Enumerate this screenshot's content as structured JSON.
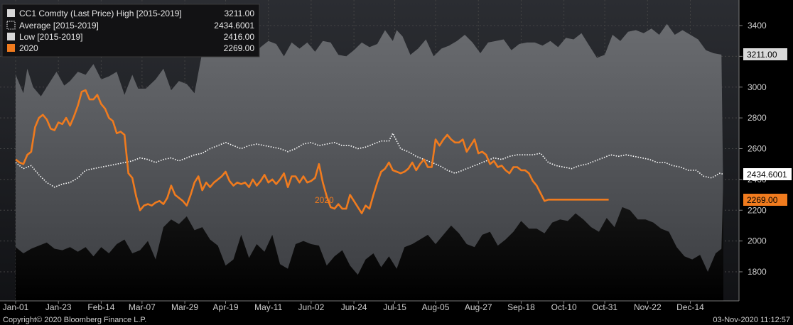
{
  "chart_data": {
    "type": "area",
    "title": "",
    "xlabel": "",
    "ylabel": "",
    "ylim": [
      1600,
      3550
    ],
    "y_ticks": [
      1800,
      2000,
      2200,
      2400,
      2600,
      2800,
      3000,
      3200,
      3400
    ],
    "x_tick_labels": [
      "Jan-01",
      "Jan-23",
      "Feb-14",
      "Mar-07",
      "Mar-29",
      "Apr-19",
      "May-11",
      "Jun-02",
      "Jun-24",
      "Jul-15",
      "Aug-05",
      "Aug-27",
      "Sep-18",
      "Oct-10",
      "Oct-31",
      "Nov-22",
      "Dec-14"
    ],
    "x_tick_days": [
      0,
      22,
      44,
      65,
      87,
      108,
      130,
      152,
      174,
      195,
      216,
      238,
      260,
      282,
      303,
      325,
      347
    ],
    "grid": true,
    "legend_placement": "top-left",
    "series": [
      {
        "name": "CC1 Comdty (Last Price) High [2015-2019]",
        "legend_value": "3211.00",
        "badge": "3211.00",
        "color": "#5a5c60",
        "x": [
          0,
          4,
          6,
          9,
          13,
          17,
          21,
          25,
          28,
          32,
          36,
          40,
          44,
          48,
          52,
          56,
          60,
          63,
          67,
          72,
          76,
          80,
          84,
          88,
          92,
          96,
          100,
          104,
          108,
          111,
          114,
          118,
          122,
          126,
          130,
          134,
          138,
          142,
          146,
          150,
          154,
          158,
          162,
          166,
          170,
          174,
          178,
          182,
          186,
          190,
          194,
          196,
          199,
          203,
          207,
          211,
          215,
          219,
          223,
          227,
          231,
          235,
          239,
          243,
          247,
          251,
          255,
          259,
          263,
          267,
          271,
          275,
          279,
          283,
          287,
          291,
          295,
          299,
          303,
          307,
          311,
          315,
          319,
          323,
          327,
          331,
          335,
          339,
          343,
          347,
          351,
          355,
          359,
          363,
          364
        ],
        "values": [
          3080,
          2960,
          3120,
          3000,
          2940,
          3020,
          3100,
          3010,
          3040,
          3100,
          3080,
          3150,
          3050,
          3070,
          3100,
          2950,
          3080,
          2990,
          2990,
          3050,
          3120,
          2980,
          3040,
          3020,
          2960,
          3230,
          3250,
          3300,
          3290,
          3340,
          3360,
          3300,
          3210,
          3260,
          3300,
          3280,
          3200,
          3290,
          3250,
          3290,
          3230,
          3300,
          3290,
          3210,
          3200,
          3240,
          3290,
          3260,
          3280,
          3370,
          3300,
          3370,
          3330,
          3210,
          3250,
          3310,
          3200,
          3250,
          3270,
          3300,
          3340,
          3290,
          3220,
          3290,
          3300,
          3310,
          3240,
          3280,
          3290,
          3290,
          3270,
          3300,
          3260,
          3320,
          3310,
          3350,
          3270,
          3190,
          3210,
          3340,
          3300,
          3360,
          3370,
          3350,
          3380,
          3340,
          3410,
          3340,
          3370,
          3340,
          3310,
          3240,
          3220,
          3211,
          2230
        ]
      },
      {
        "name": "Average [2015-2019]",
        "legend_value": "2434.6001",
        "badge": "2434.6001",
        "color": "#ffffff",
        "x": [
          0,
          4,
          8,
          12,
          16,
          20,
          24,
          28,
          32,
          36,
          40,
          44,
          48,
          52,
          56,
          60,
          64,
          68,
          72,
          76,
          80,
          84,
          88,
          92,
          96,
          100,
          104,
          108,
          112,
          116,
          120,
          124,
          128,
          132,
          136,
          140,
          144,
          148,
          152,
          156,
          160,
          164,
          168,
          172,
          176,
          180,
          184,
          188,
          192,
          194,
          198,
          202,
          206,
          210,
          214,
          218,
          222,
          226,
          230,
          234,
          238,
          242,
          246,
          250,
          254,
          258,
          262,
          266,
          270,
          274,
          278,
          282,
          286,
          290,
          294,
          298,
          302,
          306,
          310,
          314,
          318,
          322,
          326,
          330,
          334,
          338,
          342,
          346,
          350,
          354,
          358,
          362,
          364
        ],
        "values": [
          2510,
          2470,
          2490,
          2430,
          2380,
          2350,
          2370,
          2380,
          2410,
          2460,
          2470,
          2480,
          2490,
          2500,
          2510,
          2520,
          2540,
          2530,
          2510,
          2530,
          2540,
          2520,
          2540,
          2560,
          2570,
          2600,
          2620,
          2640,
          2620,
          2600,
          2620,
          2630,
          2620,
          2610,
          2600,
          2580,
          2600,
          2630,
          2640,
          2620,
          2630,
          2640,
          2620,
          2620,
          2600,
          2610,
          2630,
          2650,
          2650,
          2700,
          2600,
          2580,
          2550,
          2530,
          2510,
          2490,
          2460,
          2440,
          2460,
          2480,
          2500,
          2520,
          2540,
          2530,
          2550,
          2560,
          2560,
          2560,
          2570,
          2510,
          2490,
          2480,
          2470,
          2490,
          2500,
          2520,
          2540,
          2560,
          2550,
          2560,
          2550,
          2540,
          2530,
          2510,
          2510,
          2490,
          2480,
          2460,
          2460,
          2420,
          2410,
          2440,
          2434.6
        ]
      },
      {
        "name": "Low [2015-2019]",
        "legend_value": "2416.00",
        "color": "#000000",
        "x": [
          0,
          4,
          8,
          12,
          16,
          20,
          24,
          28,
          32,
          36,
          40,
          44,
          48,
          52,
          56,
          60,
          64,
          68,
          72,
          76,
          80,
          84,
          88,
          92,
          96,
          100,
          104,
          108,
          112,
          116,
          120,
          124,
          128,
          132,
          136,
          140,
          144,
          148,
          152,
          156,
          160,
          164,
          168,
          172,
          176,
          180,
          184,
          188,
          192,
          196,
          200,
          204,
          208,
          212,
          216,
          220,
          224,
          228,
          232,
          236,
          240,
          244,
          248,
          252,
          256,
          260,
          264,
          268,
          272,
          276,
          280,
          284,
          288,
          292,
          296,
          300,
          304,
          308,
          312,
          316,
          320,
          324,
          328,
          332,
          336,
          340,
          344,
          348,
          352,
          356,
          360,
          363,
          364
        ],
        "values": [
          1960,
          1920,
          1950,
          1970,
          1990,
          1950,
          1940,
          1960,
          1930,
          1960,
          1900,
          1960,
          1920,
          1980,
          2010,
          1920,
          1940,
          2000,
          1880,
          2090,
          2140,
          2110,
          2160,
          2070,
          2090,
          2010,
          1970,
          1840,
          1880,
          2040,
          1890,
          1980,
          1930,
          2040,
          1850,
          1820,
          1980,
          2000,
          1980,
          1970,
          1840,
          1900,
          1940,
          1840,
          1780,
          1880,
          1920,
          1830,
          1900,
          1820,
          1960,
          1980,
          2010,
          2040,
          1980,
          2040,
          2100,
          2050,
          1980,
          1960,
          2040,
          2060,
          1970,
          2010,
          2060,
          2130,
          2080,
          2080,
          2050,
          2120,
          2140,
          2130,
          2180,
          2140,
          2090,
          2060,
          2150,
          2090,
          2220,
          2200,
          2140,
          2140,
          2120,
          2080,
          2060,
          1960,
          1900,
          1880,
          1910,
          1800,
          1920,
          1950,
          2416
        ]
      },
      {
        "name": "2020",
        "legend_value": "2269.00",
        "badge": "2269.00",
        "annotation": "2020",
        "color": "#f07b1e",
        "x": [
          0,
          2,
          4,
          6,
          8,
          10,
          12,
          14,
          16,
          18,
          20,
          22,
          24,
          26,
          28,
          30,
          32,
          34,
          36,
          38,
          40,
          42,
          44,
          46,
          48,
          50,
          52,
          54,
          56,
          58,
          60,
          62,
          64,
          66,
          68,
          70,
          72,
          74,
          76,
          78,
          80,
          82,
          84,
          86,
          88,
          90,
          92,
          94,
          96,
          98,
          100,
          102,
          104,
          106,
          108,
          110,
          112,
          114,
          116,
          118,
          120,
          122,
          124,
          126,
          128,
          130,
          132,
          134,
          136,
          138,
          140,
          142,
          144,
          146,
          148,
          150,
          152,
          154,
          156,
          158,
          160,
          162,
          164,
          166,
          168,
          170,
          172,
          174,
          176,
          178,
          180,
          182,
          184,
          186,
          188,
          190,
          192,
          194,
          196,
          198,
          200,
          202,
          204,
          206,
          208,
          210,
          212,
          214,
          216,
          218,
          220,
          222,
          224,
          226,
          228,
          230,
          232,
          234,
          236,
          238,
          240,
          242,
          244,
          246,
          248,
          250,
          252,
          254,
          256,
          258,
          260,
          262,
          264,
          266,
          268,
          270,
          272,
          274,
          276,
          278,
          280,
          282,
          284,
          286,
          288,
          290,
          292,
          294,
          296,
          298,
          300,
          302,
          304,
          305
        ],
        "values": [
          2530,
          2510,
          2500,
          2560,
          2580,
          2740,
          2800,
          2820,
          2790,
          2730,
          2720,
          2770,
          2760,
          2800,
          2750,
          2810,
          2880,
          2970,
          2980,
          2920,
          2920,
          2950,
          2890,
          2860,
          2800,
          2780,
          2700,
          2710,
          2690,
          2440,
          2410,
          2290,
          2200,
          2230,
          2240,
          2230,
          2250,
          2260,
          2240,
          2280,
          2360,
          2300,
          2280,
          2260,
          2230,
          2300,
          2380,
          2420,
          2330,
          2380,
          2350,
          2380,
          2400,
          2420,
          2450,
          2390,
          2360,
          2380,
          2370,
          2380,
          2350,
          2400,
          2360,
          2390,
          2430,
          2380,
          2400,
          2370,
          2400,
          2440,
          2350,
          2420,
          2420,
          2380,
          2420,
          2380,
          2390,
          2410,
          2500,
          2380,
          2290,
          2220,
          2210,
          2240,
          2210,
          2210,
          2300,
          2260,
          2220,
          2180,
          2230,
          2210,
          2300,
          2380,
          2450,
          2470,
          2510,
          2460,
          2450,
          2440,
          2450,
          2470,
          2510,
          2460,
          2500,
          2530,
          2480,
          2480,
          2660,
          2620,
          2660,
          2690,
          2660,
          2640,
          2640,
          2660,
          2580,
          2620,
          2660,
          2570,
          2580,
          2560,
          2500,
          2520,
          2480,
          2490,
          2460,
          2440,
          2480,
          2480,
          2460,
          2460,
          2440,
          2390,
          2360,
          2310,
          2260,
          2269,
          2269,
          2269,
          2269,
          2269,
          2269,
          2269,
          2269,
          2269,
          2269,
          2269,
          2269,
          2269,
          2269,
          2269,
          2269,
          2269
        ]
      }
    ]
  },
  "footer": {
    "copyright": "Copyright© 2020 Bloomberg Finance L.P.",
    "timestamp": "03-Nov-2020 11:12:57"
  },
  "colors": {
    "background": "#000000",
    "grid": "#444444",
    "high_fill": "#5a5c60",
    "low_fill": "#000000",
    "average": "#ffffff",
    "series_2020": "#f07b1e"
  }
}
